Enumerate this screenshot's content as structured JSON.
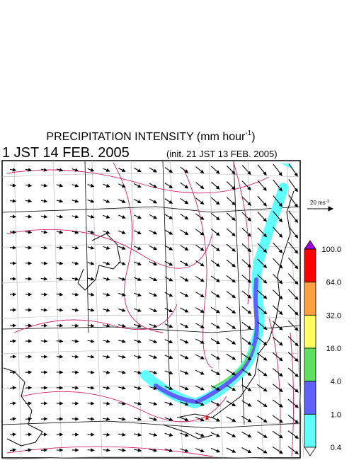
{
  "header": {
    "title": "PRECIPITATION INTENSITY (mm hour",
    "title_sup": "-1",
    "title_end": ")",
    "valid_time": "1 JST 14 FEB. 2005",
    "init_time": "(init. 21 JST 13 FEB. 2005)"
  },
  "vector_legend": {
    "label": "20 ms",
    "label_sup": "-1"
  },
  "colorbar": {
    "labels": [
      "100.0",
      "64.0",
      "32.0",
      "16.0",
      "4.0",
      "1.0",
      "0.4"
    ],
    "colors": [
      "#a000e0",
      "#ff0000",
      "#ffa040",
      "#ffff60",
      "#60e060",
      "#6060ff",
      "#60ffff",
      "#ffffff"
    ]
  }
}
